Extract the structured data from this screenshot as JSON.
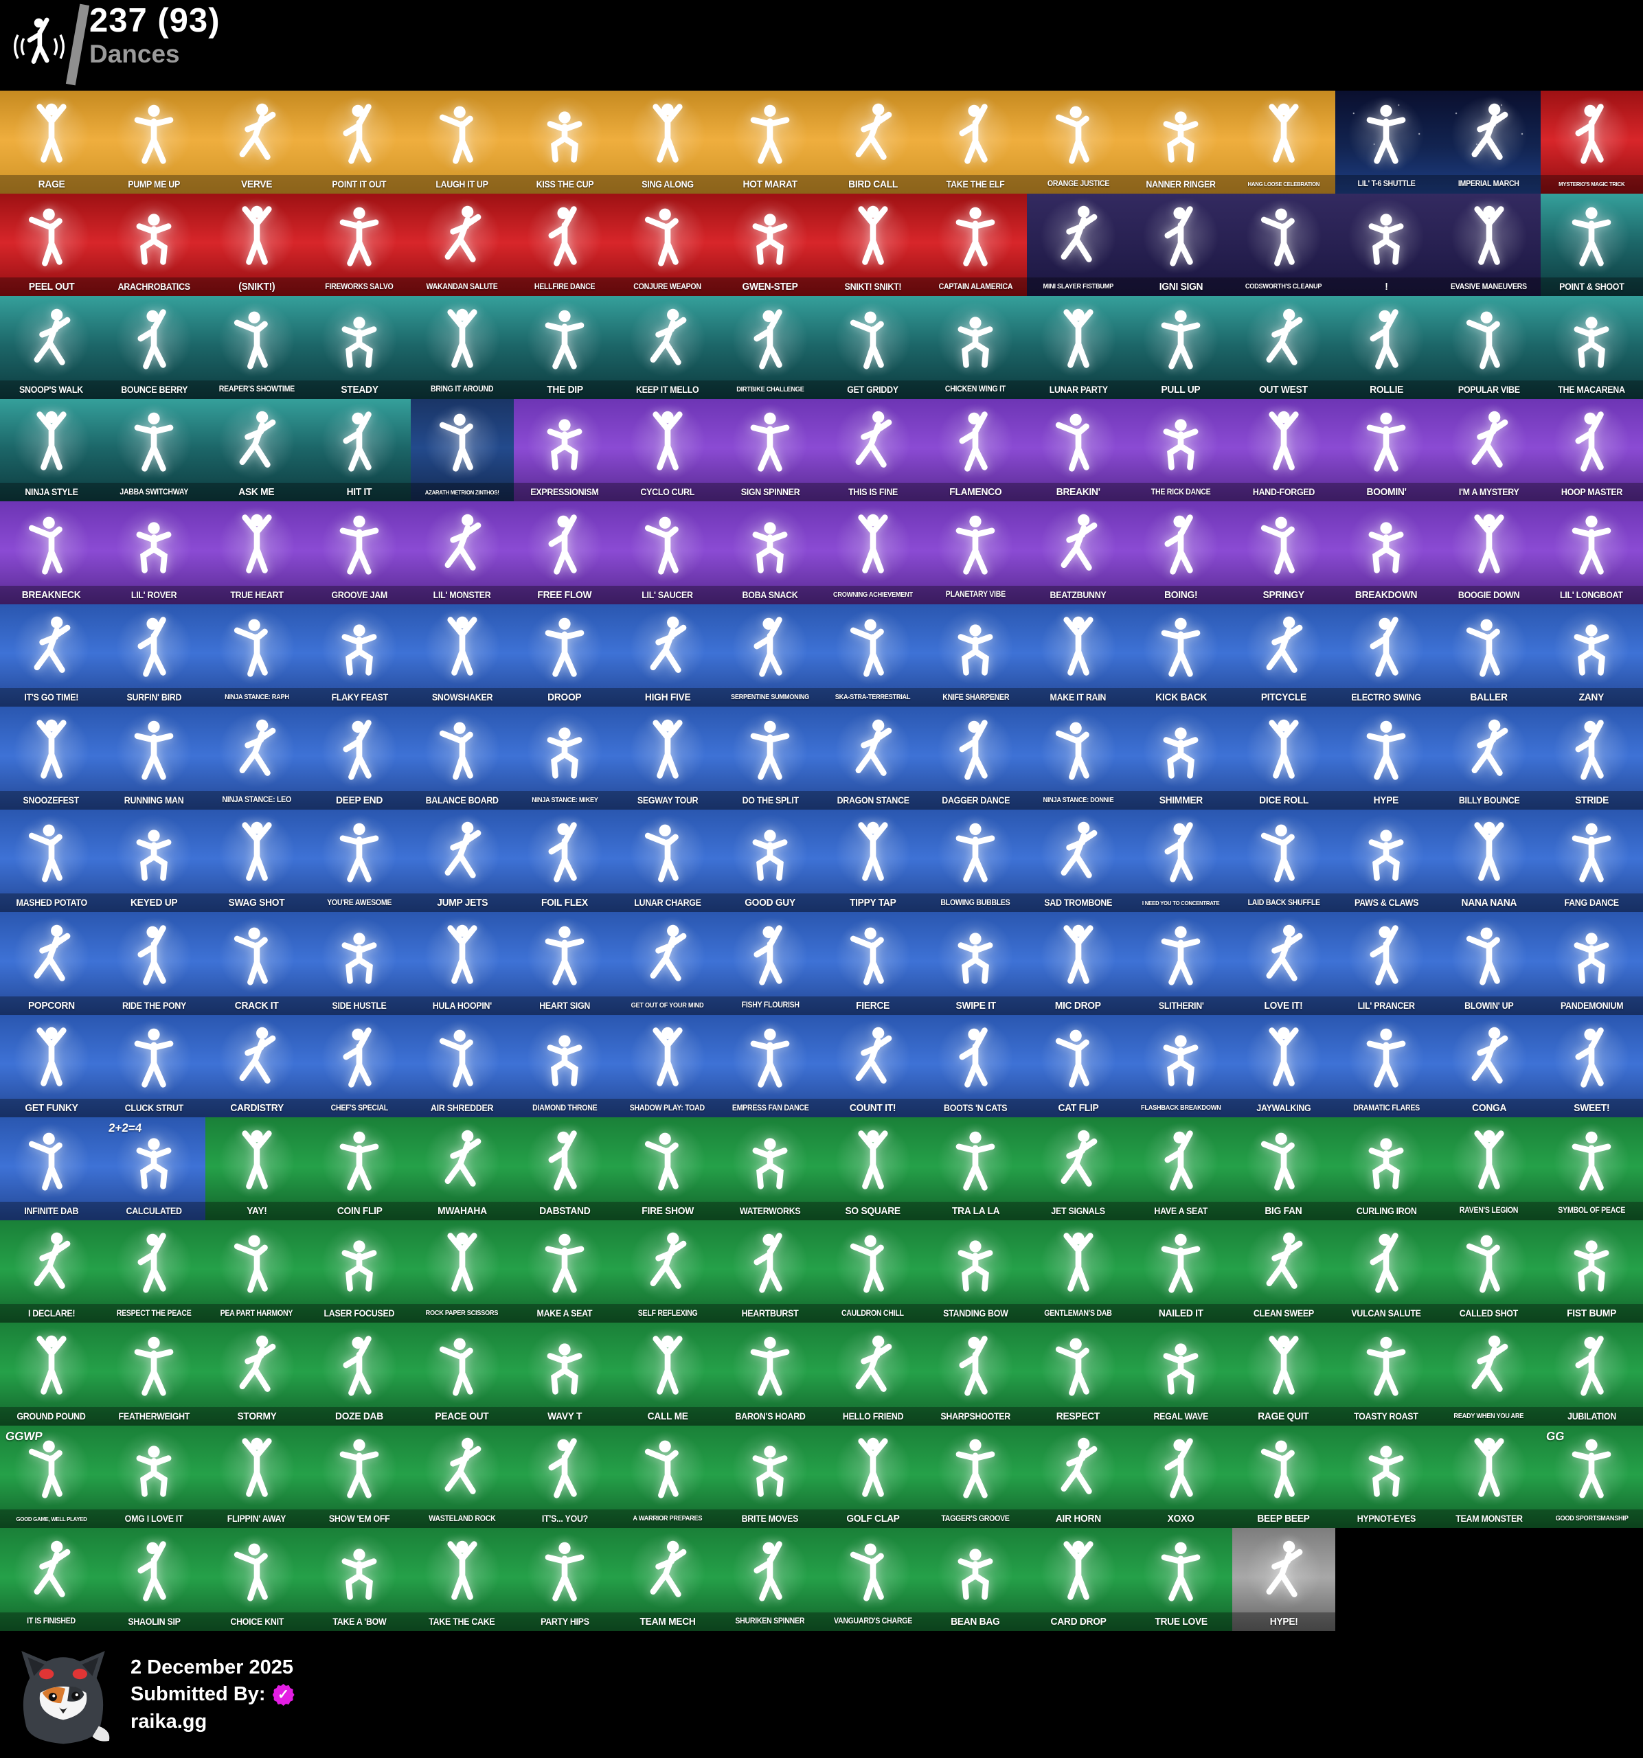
{
  "header": {
    "icon": "dancer-icon",
    "count": "237 (93)",
    "label": "Dances"
  },
  "footer": {
    "avatar": "cat-avatar",
    "date": "2 December 2025",
    "submitted_by_label": "Submitted By:",
    "badge_icon": "verified-badge-icon",
    "badge_color": "#e31ee3",
    "submitter": "raika.gg"
  },
  "rarity_colors": {
    "legendary": [
      "#c68a20",
      "#efae3e",
      "#cf9326"
    ],
    "marvel": [
      "#9d1113",
      "#d8262a",
      "#8f0d10"
    ],
    "icon": [
      "#35a09b",
      "#1c6668",
      "#0d3a3e"
    ],
    "gaming": [
      "#332a60",
      "#282152",
      "#1a1640"
    ],
    "dc": [
      "#1a3566",
      "#234a8c",
      "#142a52"
    ],
    "starwars": [
      "#0a0f2e",
      "#122451",
      "#1e3f85"
    ],
    "epic": [
      "#6d35b4",
      "#8b4bd4",
      "#57298f"
    ],
    "rare": [
      "#2a57b0",
      "#3e72d6",
      "#224693"
    ],
    "uncommon": [
      "#1a8038",
      "#25a149",
      "#12612a"
    ],
    "common": [
      "#7d7d7d",
      "#a8a8a8",
      "#636363"
    ]
  },
  "emotes": [
    {
      "n": "RAGE",
      "r": "legendary"
    },
    {
      "n": "PUMP ME UP",
      "r": "legendary"
    },
    {
      "n": "VERVE",
      "r": "legendary"
    },
    {
      "n": "POINT IT OUT",
      "r": "legendary"
    },
    {
      "n": "LAUGH IT UP",
      "r": "legendary"
    },
    {
      "n": "KISS THE CUP",
      "r": "legendary"
    },
    {
      "n": "SING ALONG",
      "r": "legendary"
    },
    {
      "n": "HOT MARAT",
      "r": "legendary"
    },
    {
      "n": "BIRD CALL",
      "r": "legendary"
    },
    {
      "n": "TAKE THE ELF",
      "r": "legendary"
    },
    {
      "n": "ORANGE JUSTICE",
      "r": "legendary"
    },
    {
      "n": "NANNER RINGER",
      "r": "legendary"
    },
    {
      "n": "HANG LOOSE CELEBRATION",
      "r": "legendary"
    },
    {
      "n": "LIL' T-6 SHUTTLE",
      "r": "starwars"
    },
    {
      "n": "IMPERIAL MARCH",
      "r": "starwars"
    },
    {
      "n": "MYSTERIO'S MAGIC TRICK",
      "r": "marvel"
    },
    {
      "n": "PEEL OUT",
      "r": "marvel"
    },
    {
      "n": "ARACHROBATICS",
      "r": "marvel"
    },
    {
      "n": "(SNIKT!)",
      "r": "marvel"
    },
    {
      "n": "FIREWORKS SALVO",
      "r": "marvel"
    },
    {
      "n": "WAKANDAN SALUTE",
      "r": "marvel"
    },
    {
      "n": "HELLFIRE DANCE",
      "r": "marvel"
    },
    {
      "n": "CONJURE WEAPON",
      "r": "marvel"
    },
    {
      "n": "GWEN-STEP",
      "r": "marvel"
    },
    {
      "n": "SNIKT! SNIKT!",
      "r": "marvel"
    },
    {
      "n": "CAPTAIN ALAMERICA",
      "r": "marvel"
    },
    {
      "n": "MINI SLAYER FISTBUMP",
      "r": "gaming"
    },
    {
      "n": "IGNI SIGN",
      "r": "gaming"
    },
    {
      "n": "CODSWORTH'S CLEANUP",
      "r": "gaming"
    },
    {
      "n": "!",
      "r": "gaming"
    },
    {
      "n": "EVASIVE MANEUVERS",
      "r": "gaming"
    },
    {
      "n": "POINT & SHOOT",
      "r": "icon"
    },
    {
      "n": "SNOOP'S WALK",
      "r": "icon"
    },
    {
      "n": "BOUNCE BERRY",
      "r": "icon"
    },
    {
      "n": "REAPER'S SHOWTIME",
      "r": "icon"
    },
    {
      "n": "STEADY",
      "r": "icon"
    },
    {
      "n": "BRING IT AROUND",
      "r": "icon"
    },
    {
      "n": "THE DIP",
      "r": "icon"
    },
    {
      "n": "KEEP IT MELLO",
      "r": "icon"
    },
    {
      "n": "DIRTBIKE CHALLENGE",
      "r": "icon"
    },
    {
      "n": "GET GRIDDY",
      "r": "icon"
    },
    {
      "n": "CHICKEN WING IT",
      "r": "icon"
    },
    {
      "n": "LUNAR PARTY",
      "r": "icon"
    },
    {
      "n": "PULL UP",
      "r": "icon"
    },
    {
      "n": "OUT WEST",
      "r": "icon"
    },
    {
      "n": "ROLLIE",
      "r": "icon"
    },
    {
      "n": "POPULAR VIBE",
      "r": "icon"
    },
    {
      "n": "THE MACARENA",
      "r": "icon"
    },
    {
      "n": "NINJA STYLE",
      "r": "icon"
    },
    {
      "n": "JABBA SWITCHWAY",
      "r": "icon"
    },
    {
      "n": "ASK ME",
      "r": "icon"
    },
    {
      "n": "HIT IT",
      "r": "icon"
    },
    {
      "n": "AZARATH METRION ZINTHOS!",
      "r": "dc"
    },
    {
      "n": "EXPRESSIONISM",
      "r": "epic"
    },
    {
      "n": "CYCLO CURL",
      "r": "epic"
    },
    {
      "n": "SIGN SPINNER",
      "r": "epic"
    },
    {
      "n": "THIS IS FINE",
      "r": "epic"
    },
    {
      "n": "FLAMENCO",
      "r": "epic"
    },
    {
      "n": "BREAKIN'",
      "r": "epic"
    },
    {
      "n": "THE RICK DANCE",
      "r": "epic"
    },
    {
      "n": "HAND-FORGED",
      "r": "epic"
    },
    {
      "n": "BOOMIN'",
      "r": "epic"
    },
    {
      "n": "I'M A MYSTERY",
      "r": "epic"
    },
    {
      "n": "HOOP MASTER",
      "r": "epic"
    },
    {
      "n": "BREAKNECK",
      "r": "epic"
    },
    {
      "n": "LIL' ROVER",
      "r": "epic"
    },
    {
      "n": "TRUE HEART",
      "r": "epic"
    },
    {
      "n": "GROOVE JAM",
      "r": "epic"
    },
    {
      "n": "LIL' MONSTER",
      "r": "epic"
    },
    {
      "n": "FREE FLOW",
      "r": "epic"
    },
    {
      "n": "LIL' SAUCER",
      "r": "epic"
    },
    {
      "n": "BOBA SNACK",
      "r": "epic"
    },
    {
      "n": "CROWNING ACHIEVEMENT",
      "r": "epic"
    },
    {
      "n": "PLANETARY VIBE",
      "r": "epic"
    },
    {
      "n": "BEATZBUNNY",
      "r": "epic"
    },
    {
      "n": "BOING!",
      "r": "epic"
    },
    {
      "n": "SPRINGY",
      "r": "epic"
    },
    {
      "n": "BREAKDOWN",
      "r": "epic"
    },
    {
      "n": "BOOGIE DOWN",
      "r": "epic"
    },
    {
      "n": "LIL' LONGBOAT",
      "r": "epic"
    },
    {
      "n": "IT'S GO TIME!",
      "r": "rare"
    },
    {
      "n": "SURFIN' BIRD",
      "r": "rare"
    },
    {
      "n": "NINJA STANCE: RAPH",
      "r": "rare"
    },
    {
      "n": "FLAKY FEAST",
      "r": "rare"
    },
    {
      "n": "SNOWSHAKER",
      "r": "rare"
    },
    {
      "n": "DROOP",
      "r": "rare"
    },
    {
      "n": "HIGH FIVE",
      "r": "rare"
    },
    {
      "n": "SERPENTINE SUMMONING",
      "r": "rare"
    },
    {
      "n": "SKA-STRA-TERRESTRIAL",
      "r": "rare"
    },
    {
      "n": "KNIFE SHARPENER",
      "r": "rare"
    },
    {
      "n": "MAKE IT RAIN",
      "r": "rare"
    },
    {
      "n": "KICK BACK",
      "r": "rare"
    },
    {
      "n": "PITCYCLE",
      "r": "rare"
    },
    {
      "n": "ELECTRO SWING",
      "r": "rare"
    },
    {
      "n": "BALLER",
      "r": "rare"
    },
    {
      "n": "ZANY",
      "r": "rare"
    },
    {
      "n": "SNOOZEFEST",
      "r": "rare"
    },
    {
      "n": "RUNNING MAN",
      "r": "rare"
    },
    {
      "n": "NINJA STANCE: LEO",
      "r": "rare"
    },
    {
      "n": "DEEP END",
      "r": "rare"
    },
    {
      "n": "BALANCE BOARD",
      "r": "rare"
    },
    {
      "n": "NINJA STANCE: MIKEY",
      "r": "rare"
    },
    {
      "n": "SEGWAY TOUR",
      "r": "rare"
    },
    {
      "n": "DO THE SPLIT",
      "r": "rare"
    },
    {
      "n": "DRAGON STANCE",
      "r": "rare"
    },
    {
      "n": "DAGGER DANCE",
      "r": "rare"
    },
    {
      "n": "NINJA STANCE: DONNIE",
      "r": "rare"
    },
    {
      "n": "SHIMMER",
      "r": "rare"
    },
    {
      "n": "DICE ROLL",
      "r": "rare"
    },
    {
      "n": "HYPE",
      "r": "rare"
    },
    {
      "n": "BILLY BOUNCE",
      "r": "rare"
    },
    {
      "n": "STRIDE",
      "r": "rare"
    },
    {
      "n": "MASHED POTATO",
      "r": "rare"
    },
    {
      "n": "KEYED UP",
      "r": "rare"
    },
    {
      "n": "SWAG SHOT",
      "r": "rare"
    },
    {
      "n": "YOU'RE AWESOME",
      "r": "rare"
    },
    {
      "n": "JUMP JETS",
      "r": "rare"
    },
    {
      "n": "FOIL FLEX",
      "r": "rare"
    },
    {
      "n": "LUNAR CHARGE",
      "r": "rare"
    },
    {
      "n": "GOOD GUY",
      "r": "rare"
    },
    {
      "n": "TIPPY TAP",
      "r": "rare"
    },
    {
      "n": "BLOWING BUBBLES",
      "r": "rare"
    },
    {
      "n": "SAD TROMBONE",
      "r": "rare"
    },
    {
      "n": "I NEED YOU TO CONCENTRATE",
      "r": "rare"
    },
    {
      "n": "LAID BACK SHUFFLE",
      "r": "rare"
    },
    {
      "n": "PAWS & CLAWS",
      "r": "rare"
    },
    {
      "n": "NANA NANA",
      "r": "rare"
    },
    {
      "n": "FANG DANCE",
      "r": "rare"
    },
    {
      "n": "POPCORN",
      "r": "rare"
    },
    {
      "n": "RIDE THE PONY",
      "r": "rare"
    },
    {
      "n": "CRACK IT",
      "r": "rare"
    },
    {
      "n": "SIDE HUSTLE",
      "r": "rare"
    },
    {
      "n": "HULA HOOPIN'",
      "r": "rare"
    },
    {
      "n": "HEART SIGN",
      "r": "rare"
    },
    {
      "n": "GET OUT OF YOUR MIND",
      "r": "rare"
    },
    {
      "n": "FISHY FLOURISH",
      "r": "rare"
    },
    {
      "n": "FIERCE",
      "r": "rare"
    },
    {
      "n": "SWIPE IT",
      "r": "rare"
    },
    {
      "n": "MIC DROP",
      "r": "rare"
    },
    {
      "n": "SLITHERIN'",
      "r": "rare"
    },
    {
      "n": "LOVE IT!",
      "r": "rare"
    },
    {
      "n": "LIL' PRANCER",
      "r": "rare"
    },
    {
      "n": "BLOWIN' UP",
      "r": "rare"
    },
    {
      "n": "PANDEMONIUM",
      "r": "rare"
    },
    {
      "n": "GET FUNKY",
      "r": "rare"
    },
    {
      "n": "CLUCK STRUT",
      "r": "rare"
    },
    {
      "n": "CARDISTRY",
      "r": "rare"
    },
    {
      "n": "CHEF'S SPECIAL",
      "r": "rare"
    },
    {
      "n": "AIR SHREDDER",
      "r": "rare"
    },
    {
      "n": "DIAMOND THRONE",
      "r": "rare"
    },
    {
      "n": "SHADOW PLAY: TOAD",
      "r": "rare"
    },
    {
      "n": "EMPRESS FAN DANCE",
      "r": "rare"
    },
    {
      "n": "COUNT IT!",
      "r": "rare"
    },
    {
      "n": "BOOTS 'N CATS",
      "r": "rare"
    },
    {
      "n": "CAT FLIP",
      "r": "rare"
    },
    {
      "n": "FLASHBACK BREAKDOWN",
      "r": "rare"
    },
    {
      "n": "JAYWALKING",
      "r": "rare"
    },
    {
      "n": "DRAMATIC FLARES",
      "r": "rare"
    },
    {
      "n": "CONGA",
      "r": "rare"
    },
    {
      "n": "SWEET!",
      "r": "rare"
    },
    {
      "n": "INFINITE DAB",
      "r": "rare"
    },
    {
      "n": "CALCULATED",
      "r": "rare",
      "t": "2+2=4"
    },
    {
      "n": "YAY!",
      "r": "uncommon"
    },
    {
      "n": "COIN FLIP",
      "r": "uncommon"
    },
    {
      "n": "MWAHAHA",
      "r": "uncommon"
    },
    {
      "n": "DABSTAND",
      "r": "uncommon"
    },
    {
      "n": "FIRE SHOW",
      "r": "uncommon"
    },
    {
      "n": "WATERWORKS",
      "r": "uncommon"
    },
    {
      "n": "SO SQUARE",
      "r": "uncommon"
    },
    {
      "n": "TRA LA LA",
      "r": "uncommon"
    },
    {
      "n": "JET SIGNALS",
      "r": "uncommon"
    },
    {
      "n": "HAVE A SEAT",
      "r": "uncommon"
    },
    {
      "n": "BIG FAN",
      "r": "uncommon"
    },
    {
      "n": "CURLING IRON",
      "r": "uncommon"
    },
    {
      "n": "RAVEN'S LEGION",
      "r": "uncommon"
    },
    {
      "n": "SYMBOL OF PEACE",
      "r": "uncommon"
    },
    {
      "n": "I DECLARE!",
      "r": "uncommon"
    },
    {
      "n": "RESPECT THE PEACE",
      "r": "uncommon"
    },
    {
      "n": "PEA PART HARMONY",
      "r": "uncommon"
    },
    {
      "n": "LASER FOCUSED",
      "r": "uncommon"
    },
    {
      "n": "ROCK PAPER SCISSORS",
      "r": "uncommon"
    },
    {
      "n": "MAKE A SEAT",
      "r": "uncommon"
    },
    {
      "n": "SELF REFLEXING",
      "r": "uncommon"
    },
    {
      "n": "HEARTBURST",
      "r": "uncommon"
    },
    {
      "n": "CAULDRON CHILL",
      "r": "uncommon"
    },
    {
      "n": "STANDING BOW",
      "r": "uncommon"
    },
    {
      "n": "GENTLEMAN'S DAB",
      "r": "uncommon"
    },
    {
      "n": "NAILED IT",
      "r": "uncommon"
    },
    {
      "n": "CLEAN SWEEP",
      "r": "uncommon"
    },
    {
      "n": "VULCAN SALUTE",
      "r": "uncommon"
    },
    {
      "n": "CALLED SHOT",
      "r": "uncommon"
    },
    {
      "n": "FIST BUMP",
      "r": "uncommon"
    },
    {
      "n": "GROUND POUND",
      "r": "uncommon"
    },
    {
      "n": "FEATHERWEIGHT",
      "r": "uncommon"
    },
    {
      "n": "STORMY",
      "r": "uncommon"
    },
    {
      "n": "DOZE DAB",
      "r": "uncommon"
    },
    {
      "n": "PEACE OUT",
      "r": "uncommon"
    },
    {
      "n": "WAVY T",
      "r": "uncommon"
    },
    {
      "n": "CALL ME",
      "r": "uncommon"
    },
    {
      "n": "BARON'S HOARD",
      "r": "uncommon"
    },
    {
      "n": "HELLO FRIEND",
      "r": "uncommon"
    },
    {
      "n": "SHARPSHOOTER",
      "r": "uncommon"
    },
    {
      "n": "RESPECT",
      "r": "uncommon"
    },
    {
      "n": "REGAL WAVE",
      "r": "uncommon"
    },
    {
      "n": "RAGE QUIT",
      "r": "uncommon"
    },
    {
      "n": "TOASTY ROAST",
      "r": "uncommon"
    },
    {
      "n": "READY WHEN YOU ARE",
      "r": "uncommon"
    },
    {
      "n": "JUBILATION",
      "r": "uncommon"
    },
    {
      "n": "GOOD GAME, WELL PLAYED",
      "r": "uncommon",
      "t": "GGWP"
    },
    {
      "n": "OMG I LOVE IT",
      "r": "uncommon"
    },
    {
      "n": "FLIPPIN' AWAY",
      "r": "uncommon"
    },
    {
      "n": "SHOW 'EM OFF",
      "r": "uncommon"
    },
    {
      "n": "WASTELAND ROCK",
      "r": "uncommon"
    },
    {
      "n": "IT'S... YOU?",
      "r": "uncommon"
    },
    {
      "n": "A WARRIOR PREPARES",
      "r": "uncommon"
    },
    {
      "n": "BRITE MOVES",
      "r": "uncommon"
    },
    {
      "n": "GOLF CLAP",
      "r": "uncommon"
    },
    {
      "n": "TAGGER'S GROOVE",
      "r": "uncommon"
    },
    {
      "n": "AIR HORN",
      "r": "uncommon"
    },
    {
      "n": "XOXO",
      "r": "uncommon"
    },
    {
      "n": "BEEP BEEP",
      "r": "uncommon"
    },
    {
      "n": "HYPNOT-EYES",
      "r": "uncommon"
    },
    {
      "n": "TEAM MONSTER",
      "r": "uncommon"
    },
    {
      "n": "GOOD SPORTSMANSHIP",
      "r": "uncommon",
      "t": "GG"
    },
    {
      "n": "IT IS FINISHED",
      "r": "uncommon"
    },
    {
      "n": "SHAOLIN SIP",
      "r": "uncommon"
    },
    {
      "n": "CHOICE KNIT",
      "r": "uncommon"
    },
    {
      "n": "TAKE A 'BOW",
      "r": "uncommon"
    },
    {
      "n": "TAKE THE CAKE",
      "r": "uncommon"
    },
    {
      "n": "PARTY HIPS",
      "r": "uncommon"
    },
    {
      "n": "TEAM MECH",
      "r": "uncommon"
    },
    {
      "n": "SHURIKEN SPINNER",
      "r": "uncommon"
    },
    {
      "n": "VANGUARD'S CHARGE",
      "r": "uncommon"
    },
    {
      "n": "BEAN BAG",
      "r": "uncommon"
    },
    {
      "n": "CARD DROP",
      "r": "uncommon"
    },
    {
      "n": "TRUE LOVE",
      "r": "uncommon"
    },
    {
      "n": "HYPE!",
      "r": "common"
    }
  ]
}
